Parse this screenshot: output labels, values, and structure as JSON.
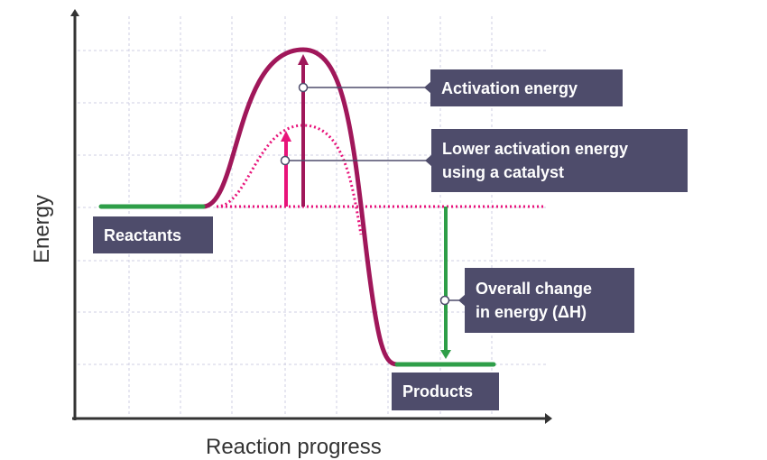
{
  "axes": {
    "y_label": "Energy",
    "x_label": "Reaction progress"
  },
  "labels": {
    "reactants": "Reactants",
    "products": "Products",
    "activation": "Activation energy",
    "catalyst_line1": "Lower activation energy",
    "catalyst_line2": "using a catalyst",
    "delta_line1": "Overall change",
    "delta_line2": "in energy (ΔH)"
  },
  "colors": {
    "curve": "#a0175a",
    "catalyst": "#e8137a",
    "level": "#2e9e48",
    "box": "#4e4c6b",
    "axis": "#333333",
    "grid": "#c9c9e0"
  }
}
